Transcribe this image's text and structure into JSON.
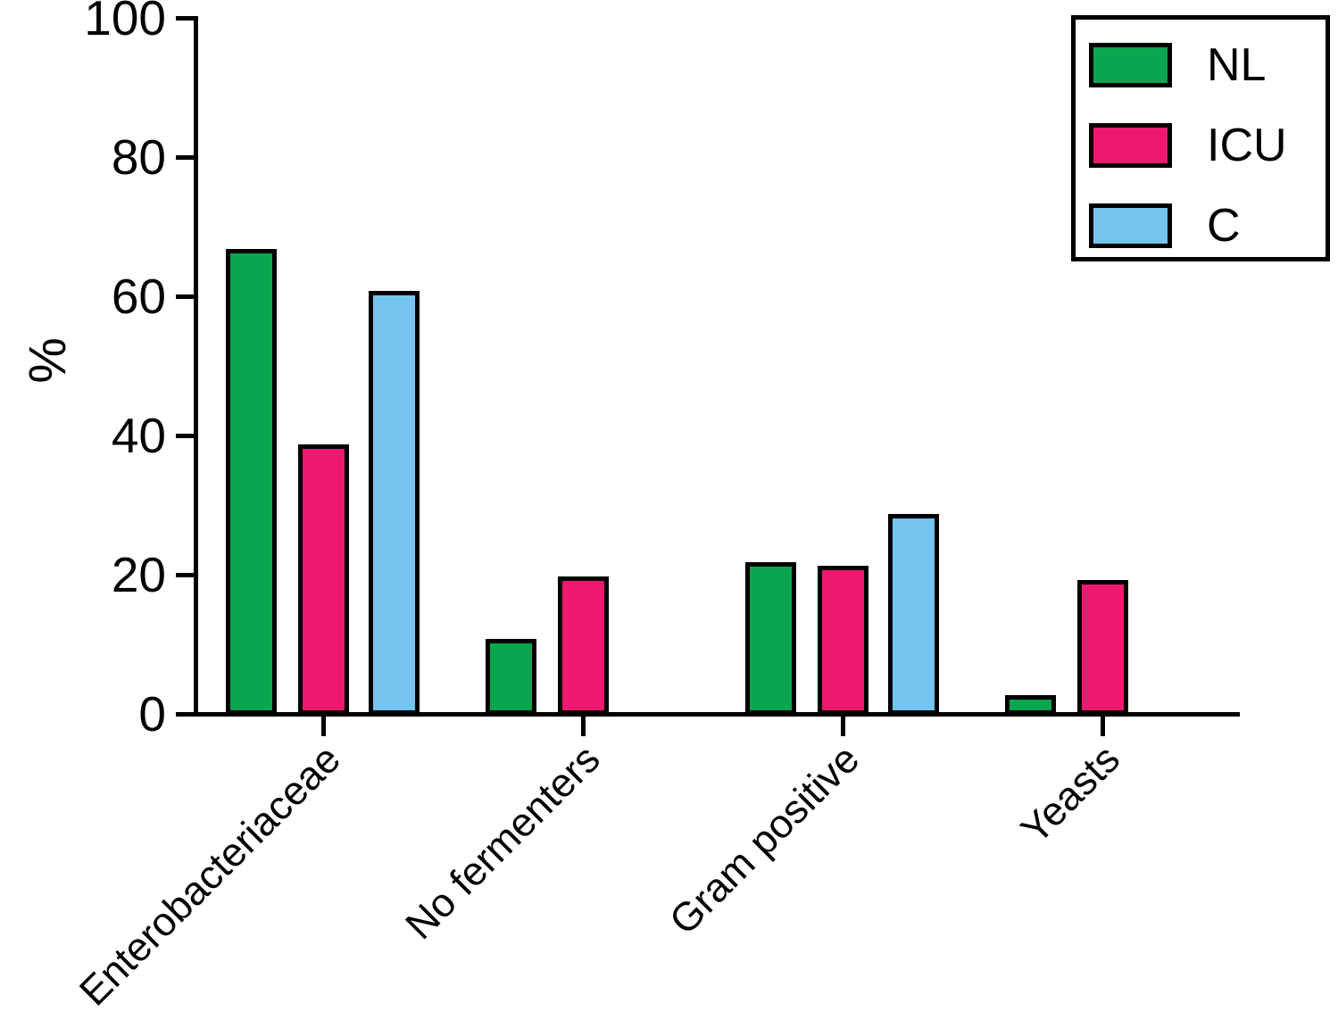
{
  "figure": {
    "background": "#ffffff",
    "axis_color": "#000000"
  },
  "chart_data": {
    "type": "bar",
    "title": "",
    "xlabel": "",
    "ylabel": "%",
    "categories": [
      "Enterobacteriaceae",
      "No fermenters",
      "Gram positive",
      "Yeasts"
    ],
    "series": [
      {
        "name": "NL",
        "color": "#0aa64f",
        "values": [
          66.5,
          10.5,
          21.5,
          2.5
        ]
      },
      {
        "name": "ICU",
        "color": "#ee1870",
        "values": [
          38.5,
          19.5,
          21.0,
          19.0
        ]
      },
      {
        "name": "C",
        "color": "#74c4ef",
        "values": [
          60.5,
          null,
          28.5,
          null
        ]
      }
    ],
    "ylim": [
      0,
      100
    ],
    "yticks": [
      0,
      20,
      40,
      60,
      80,
      100
    ],
    "grid": false,
    "legend_position": "top-right",
    "bar_border_color": "#000000"
  }
}
